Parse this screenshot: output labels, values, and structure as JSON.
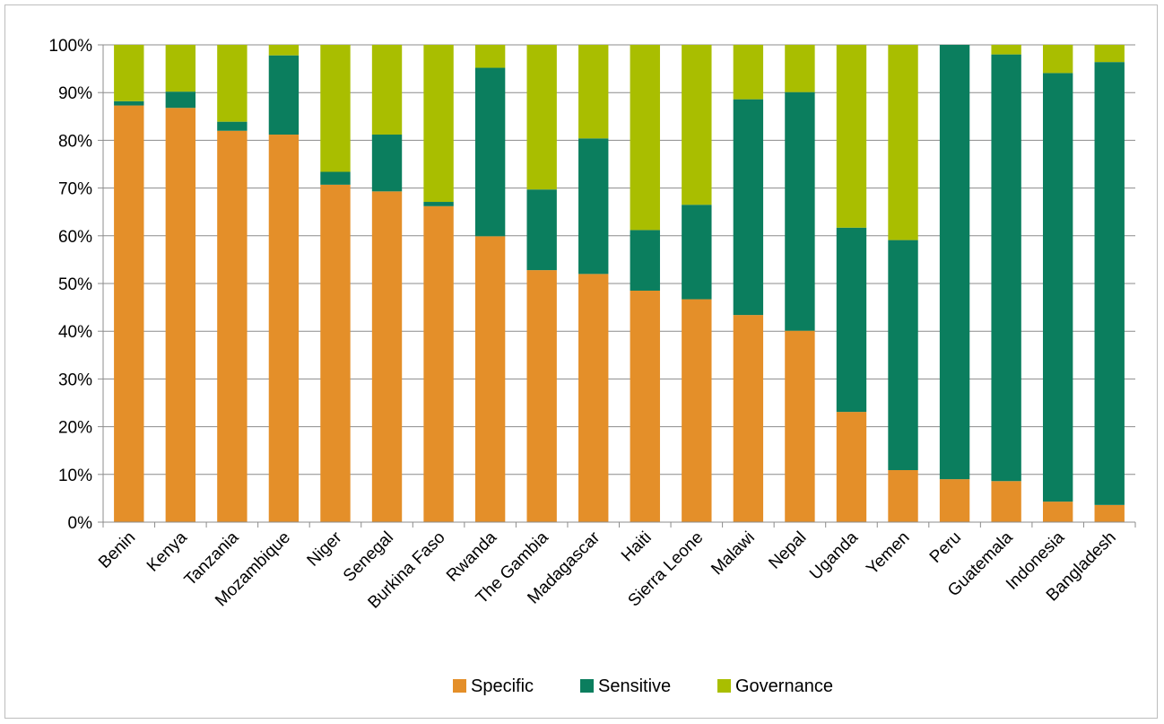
{
  "chart_data": {
    "type": "bar",
    "stacked": true,
    "orientation": "vertical",
    "title": "",
    "xlabel": "",
    "ylabel": "",
    "ylim": [
      0,
      100
    ],
    "y_ticks": [
      "0%",
      "10%",
      "20%",
      "30%",
      "40%",
      "50%",
      "60%",
      "70%",
      "80%",
      "90%",
      "100%"
    ],
    "grid": "horizontal",
    "legend_position": "bottom",
    "categories": [
      "Benin",
      "Kenya",
      "Tanzania",
      "Mozambique",
      "Niger",
      "Senegal",
      "Burkina Faso",
      "Rwanda",
      "The Gambia",
      "Madagascar",
      "Haiti",
      "Sierra Leone",
      "Malawi",
      "Nepal",
      "Uganda",
      "Yemen",
      "Peru",
      "Guatemala",
      "Indonesia",
      "Bangladesh"
    ],
    "series": [
      {
        "name": "Specific",
        "color": "#e48f29",
        "values": [
          87.3,
          86.8,
          82.0,
          81.2,
          70.7,
          69.3,
          66.2,
          59.9,
          52.8,
          52.0,
          48.5,
          46.7,
          43.4,
          40.1,
          23.1,
          10.9,
          9.0,
          8.6,
          4.3,
          3.6
        ]
      },
      {
        "name": "Sensitive",
        "color": "#0b7e5e",
        "values": [
          0.9,
          3.4,
          1.9,
          16.6,
          2.7,
          11.9,
          0.9,
          35.3,
          16.9,
          28.4,
          12.7,
          19.8,
          45.2,
          50.0,
          38.6,
          48.2,
          91.0,
          89.4,
          89.8,
          92.8
        ]
      },
      {
        "name": "Governance",
        "color": "#a9be00",
        "values": [
          11.8,
          9.8,
          16.1,
          2.2,
          26.6,
          18.8,
          32.9,
          4.8,
          30.3,
          19.6,
          38.8,
          33.5,
          11.4,
          9.9,
          38.3,
          40.9,
          0.0,
          2.0,
          5.9,
          3.6
        ]
      }
    ]
  }
}
